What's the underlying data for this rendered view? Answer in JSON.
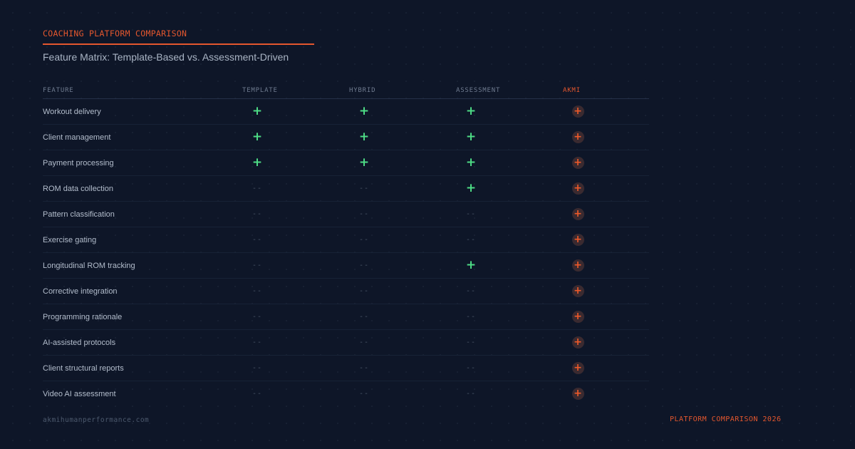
{
  "header": {
    "eyebrow": "COACHING PLATFORM COMPARISON",
    "subtitle": "Feature Matrix: Template-Based vs. Assessment-Driven"
  },
  "table": {
    "columns": {
      "feature": "FEATURE",
      "template": "TEMPLATE",
      "hybrid": "HYBRID",
      "assessment": "ASSESSMENT",
      "akmi": "AKMI"
    },
    "rows": [
      {
        "feature": "Workout delivery",
        "template": true,
        "hybrid": true,
        "assessment": true,
        "akmi": true
      },
      {
        "feature": "Client management",
        "template": true,
        "hybrid": true,
        "assessment": true,
        "akmi": true
      },
      {
        "feature": "Payment processing",
        "template": true,
        "hybrid": true,
        "assessment": true,
        "akmi": true
      },
      {
        "feature": "ROM data collection",
        "template": false,
        "hybrid": false,
        "assessment": true,
        "akmi": true
      },
      {
        "feature": "Pattern classification",
        "template": false,
        "hybrid": false,
        "assessment": false,
        "akmi": true
      },
      {
        "feature": "Exercise gating",
        "template": false,
        "hybrid": false,
        "assessment": false,
        "akmi": true
      },
      {
        "feature": "Longitudinal ROM tracking",
        "template": false,
        "hybrid": false,
        "assessment": true,
        "akmi": true
      },
      {
        "feature": "Corrective integration",
        "template": false,
        "hybrid": false,
        "assessment": false,
        "akmi": true
      },
      {
        "feature": "Programming rationale",
        "template": false,
        "hybrid": false,
        "assessment": false,
        "akmi": true
      },
      {
        "feature": "AI-assisted protocols",
        "template": false,
        "hybrid": false,
        "assessment": false,
        "akmi": true
      },
      {
        "feature": "Client structural reports",
        "template": false,
        "hybrid": false,
        "assessment": false,
        "akmi": true
      },
      {
        "feature": "Video AI assessment",
        "template": false,
        "hybrid": false,
        "assessment": false,
        "akmi": true
      }
    ],
    "yes_symbol": "+",
    "no_symbol": "--"
  },
  "footer": {
    "website": "akmihumanperformance.com",
    "tag": "PLATFORM COMPARISON 2026"
  },
  "colors": {
    "background": "#0e1628",
    "accent": "#e4572e",
    "check": "#4ddb85",
    "dash": "#4a5567"
  }
}
